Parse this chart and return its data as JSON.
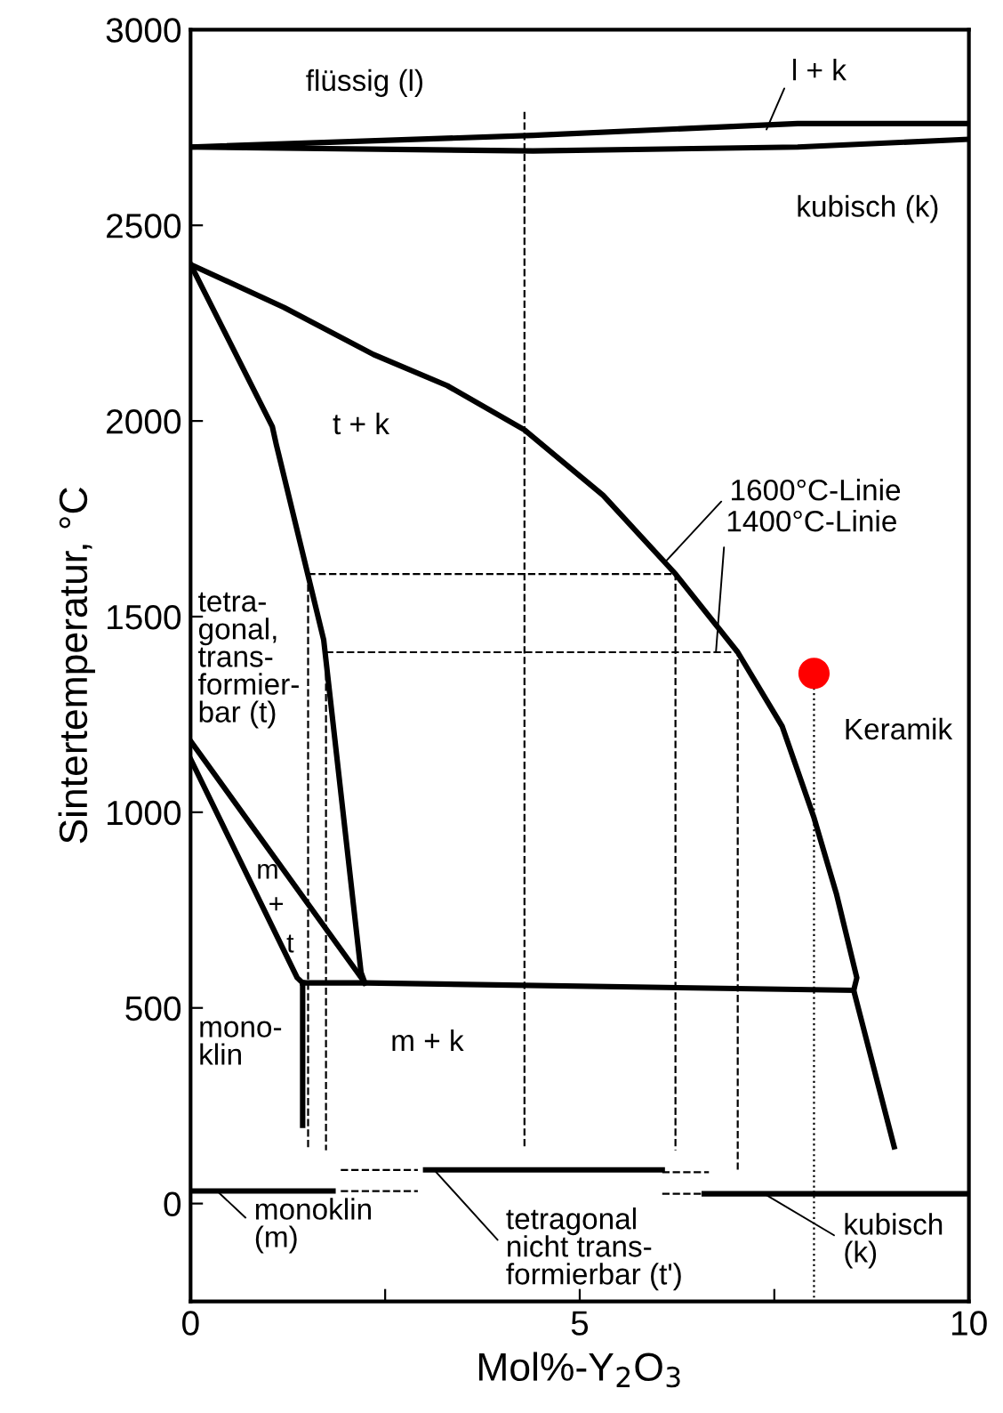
{
  "chart_data": {
    "type": "line",
    "xlabel": "Mol%-Y$_{2}$O$_{3}$",
    "ylabel": "Sintertemperatur, °C",
    "xlim": [
      0,
      10
    ],
    "ylim": [
      -250,
      3000
    ],
    "xticks": [
      0,
      {
        "value": 2.5,
        "label": null
      },
      5,
      {
        "value": 7.5,
        "label": null
      },
      10
    ],
    "yticks": [
      0,
      500,
      1000,
      1500,
      2000,
      2500,
      3000
    ],
    "grid": false,
    "legend": false,
    "series": [
      {
        "color": "#000000",
        "line_style": "solid",
        "x": [
          0,
          4.4,
          7.8,
          10
        ],
        "values": [
          2700,
          2730,
          2760,
          2760
        ]
      },
      {
        "color": "#000000",
        "line_style": "solid",
        "x": [
          0,
          4.4,
          7.8,
          10
        ],
        "values": [
          2700,
          2690,
          2700,
          2720
        ]
      },
      {
        "color": "#000000",
        "line_style": "solid",
        "x": [
          0,
          1.2,
          2.35,
          3.3,
          4.29,
          5.3,
          6.23,
          7.03,
          7.6,
          8.01,
          8.3,
          8.56,
          8.52,
          9.04
        ],
        "values": [
          2400,
          2290,
          2170,
          2090,
          1977,
          1810,
          1609,
          1409,
          1220,
          986,
          790,
          577,
          545,
          145
        ]
      },
      {
        "color": "#000000",
        "line_style": "solid",
        "x": [
          0,
          1.05,
          1.1,
          1.71,
          2.19,
          2.24
        ],
        "values": [
          2400,
          1986,
          1941,
          1441,
          591,
          564
        ]
      },
      {
        "color": "#000000",
        "line_style": "solid",
        "x": [
          1.44,
          2.24,
          8.52
        ],
        "values": [
          564,
          564,
          545
        ]
      },
      {
        "color": "#000000",
        "line_style": "solid",
        "x": [
          0,
          2.24
        ],
        "values": [
          1182,
          564
        ]
      },
      {
        "color": "#000000",
        "line_style": "solid",
        "x": [
          0,
          1.37,
          1.44
        ],
        "values": [
          1136,
          577,
          564
        ]
      },
      {
        "color": "#000000",
        "line_style": "solid",
        "x": [
          1.44,
          1.44
        ],
        "values": [
          564,
          200
        ]
      },
      {
        "color": "#000000",
        "line_style": "dashed",
        "x": [
          4.29,
          4.29
        ],
        "values": [
          2790,
          145
        ]
      },
      {
        "color": "#000000",
        "line_style": "dashed",
        "x": [
          1.51,
          6.23,
          6.23
        ],
        "values": [
          1609,
          1609,
          136
        ]
      },
      {
        "color": "#000000",
        "line_style": "dashed",
        "x": [
          1.74,
          7.03,
          7.03
        ],
        "values": [
          1409,
          1409,
          86
        ]
      },
      {
        "color": "#000000",
        "line_style": "dashed",
        "x": [
          1.51,
          1.51
        ],
        "values": [
          1609,
          136
        ]
      },
      {
        "color": "#000000",
        "line_style": "dashed",
        "x": [
          1.74,
          1.74
        ],
        "values": [
          1409,
          136
        ]
      },
      {
        "color": "#000000",
        "line_style": "dotted",
        "x": [
          8.01,
          8.01
        ],
        "values": [
          1318,
          -250
        ]
      },
      {
        "color": "#000000",
        "line_style": "solid",
        "x": [
          0,
          1.83
        ],
        "values": [
          32,
          32
        ]
      },
      {
        "color": "#000000",
        "line_style": "dashed",
        "x": [
          1.93,
          2.92
        ],
        "values": [
          86,
          86
        ]
      },
      {
        "color": "#000000",
        "line_style": "dashed",
        "x": [
          1.93,
          2.92
        ],
        "values": [
          32,
          32
        ]
      },
      {
        "color": "#000000",
        "line_style": "solid",
        "x": [
          3.02,
          6.06
        ],
        "values": [
          86,
          86
        ]
      },
      {
        "color": "#000000",
        "line_style": "dashed",
        "x": [
          6.06,
          6.66
        ],
        "values": [
          80,
          80
        ]
      },
      {
        "color": "#000000",
        "line_style": "dashed",
        "x": [
          6.06,
          6.6
        ],
        "values": [
          25,
          25
        ]
      },
      {
        "color": "#000000",
        "line_style": "solid",
        "x": [
          6.6,
          10
        ],
        "values": [
          25,
          25
        ]
      },
      {
        "type": "scatter",
        "color": "#ff0000",
        "marker": "circle",
        "x": [
          8.01
        ],
        "values": [
          1355
        ]
      }
    ],
    "annotations": [
      "flüssig (l)",
      {
        "text": "l + k",
        "x": 7.4,
        "y": 2745
      },
      "kubisch (k)",
      "t + k",
      {
        "text": "1600°C-Linie",
        "x": 6.1,
        "y": 1640
      },
      {
        "text": "1400°C-Linie",
        "x": 6.75,
        "y": 1409
      },
      "tetra-\ngonal,\ntrans-\nformier-\nbar (t)",
      "m\n+\nt",
      "mono-\nklin",
      "m + k",
      "Keramik",
      {
        "text": "monoklin\n(m)",
        "x": 0.34,
        "y": 32
      },
      {
        "text": "tetragonal\nnicht trans-\nformierbar (t')",
        "x": 3.13,
        "y": 86
      },
      {
        "text": "kubisch\n(k)",
        "x": 7.37,
        "y": 25
      }
    ]
  }
}
